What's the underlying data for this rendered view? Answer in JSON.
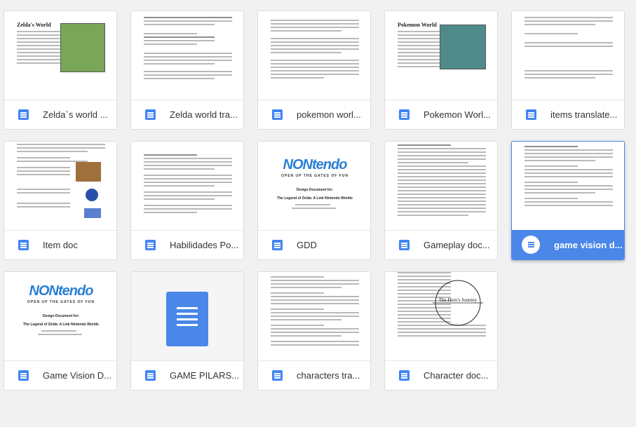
{
  "files": [
    {
      "name": "Zelda`s world ..."
    },
    {
      "name": "Zelda world tra..."
    },
    {
      "name": "pokemon worl..."
    },
    {
      "name": "Pokemon Worl..."
    },
    {
      "name": "items translate..."
    },
    {
      "name": "Item doc"
    },
    {
      "name": "Habilidades Po..."
    },
    {
      "name": "GDD"
    },
    {
      "name": "Gameplay doc..."
    },
    {
      "name": "game vision d..."
    },
    {
      "name": "Game Vision D..."
    },
    {
      "name": "GAME PILARS..."
    },
    {
      "name": "characters tra..."
    },
    {
      "name": "Character doc..."
    }
  ],
  "thumbs": {
    "zelda_title": "Zelda's World",
    "pokemon_title": "Pokemon World",
    "nintendo_logo": "NONtendo",
    "nintendo_slogan": "OPEN UP THE GATES OF FUN",
    "design_doc_for": "Design Document for:",
    "design_doc_title": "The Legend of Zelda: A Link Nintendo Worlds",
    "journey_title": "The Hero's Journey"
  },
  "colors": {
    "accent": "#4a87e8",
    "doc_icon": "#4285f4"
  }
}
